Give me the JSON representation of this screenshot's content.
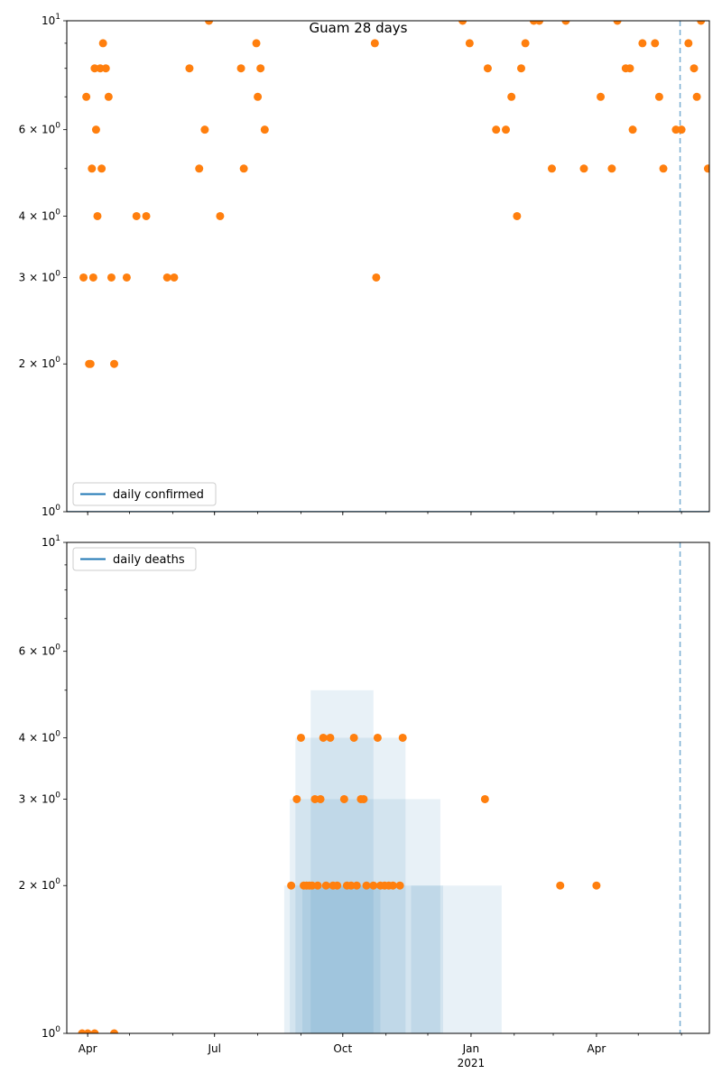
{
  "figure_title": "Guam 28 days",
  "colors": {
    "line": "#1f77b4",
    "points": "#ff7f0e",
    "band": "#1f77b4",
    "vline": "#1f77b4"
  },
  "chart_data": [
    {
      "type": "scatter",
      "title": "Guam 28 days",
      "xlabel": "",
      "ylabel": "",
      "y_scale": "log",
      "ylim": [
        1,
        10
      ],
      "xlim": [
        "2020-03-17",
        "2021-06-21"
      ],
      "x_ticks": [
        {
          "date": "2020-04-01",
          "label": "Apr"
        },
        {
          "date": "2020-07-01",
          "label": "Jul"
        },
        {
          "date": "2020-10-01",
          "label": "Oct"
        },
        {
          "date": "2021-01-01",
          "label": "Jan",
          "sublabel": "2021"
        },
        {
          "date": "2021-04-01",
          "label": "Apr"
        }
      ],
      "y_ticks": [
        {
          "value": 1,
          "label": "10^0",
          "mant": "10",
          "exp": "0"
        },
        {
          "value": 2,
          "label": "2×10^0",
          "mant": "2 × 10",
          "exp": "0"
        },
        {
          "value": 3,
          "label": "3×10^0",
          "mant": "3 × 10",
          "exp": "0"
        },
        {
          "value": 4,
          "label": "4×10^0",
          "mant": "4 × 10",
          "exp": "0"
        },
        {
          "value": 6,
          "label": "6×10^0",
          "mant": "6 × 10",
          "exp": "0"
        },
        {
          "value": 10,
          "label": "10^1",
          "mant": "10",
          "exp": "1"
        }
      ],
      "legend": {
        "position": "lower-left",
        "entries": [
          "daily confirmed"
        ]
      },
      "vline_date": "2021-05-31",
      "series": [
        {
          "name": "daily confirmed",
          "kind": "line",
          "x": [
            "2020-03-17",
            "2021-06-21"
          ],
          "y": [
            1,
            1
          ]
        }
      ],
      "points": [
        [
          "2020-03-29",
          3
        ],
        [
          "2020-03-31",
          7
        ],
        [
          "2020-04-02",
          2
        ],
        [
          "2020-04-04",
          5
        ],
        [
          "2020-04-06",
          8
        ],
        [
          "2020-04-07",
          6
        ],
        [
          "2020-04-08",
          4
        ],
        [
          "2020-04-10",
          8
        ],
        [
          "2020-04-12",
          9
        ],
        [
          "2020-04-14",
          8
        ],
        [
          "2020-04-16",
          7
        ],
        [
          "2020-04-18",
          3
        ],
        [
          "2020-04-11",
          5
        ],
        [
          "2020-04-03",
          2
        ],
        [
          "2020-04-05",
          3
        ],
        [
          "2020-04-20",
          2
        ],
        [
          "2020-04-29",
          3
        ],
        [
          "2020-05-06",
          4
        ],
        [
          "2020-05-13",
          4
        ],
        [
          "2020-05-28",
          3
        ],
        [
          "2020-06-02",
          3
        ],
        [
          "2020-06-13",
          8
        ],
        [
          "2020-06-20",
          5
        ],
        [
          "2020-06-24",
          6
        ],
        [
          "2020-06-27",
          10
        ],
        [
          "2020-07-05",
          4
        ],
        [
          "2020-07-20",
          8
        ],
        [
          "2020-07-22",
          5
        ],
        [
          "2020-07-31",
          9
        ],
        [
          "2020-08-01",
          7
        ],
        [
          "2020-08-03",
          8
        ],
        [
          "2020-08-06",
          6
        ],
        [
          "2020-10-24",
          9
        ],
        [
          "2020-10-25",
          3
        ],
        [
          "2020-12-26",
          10
        ],
        [
          "2020-12-31",
          9
        ],
        [
          "2021-01-13",
          8
        ],
        [
          "2021-01-19",
          6
        ],
        [
          "2021-01-26",
          6
        ],
        [
          "2021-01-30",
          7
        ],
        [
          "2021-02-03",
          4
        ],
        [
          "2021-02-06",
          8
        ],
        [
          "2021-02-09",
          9
        ],
        [
          "2021-02-15",
          10
        ],
        [
          "2021-02-19",
          10
        ],
        [
          "2021-02-28",
          5
        ],
        [
          "2021-03-10",
          10
        ],
        [
          "2021-03-23",
          5
        ],
        [
          "2021-04-04",
          7
        ],
        [
          "2021-04-12",
          5
        ],
        [
          "2021-04-16",
          10
        ],
        [
          "2021-04-22",
          8
        ],
        [
          "2021-04-25",
          8
        ],
        [
          "2021-04-27",
          6
        ],
        [
          "2021-05-04",
          9
        ],
        [
          "2021-05-13",
          9
        ],
        [
          "2021-05-16",
          7
        ],
        [
          "2021-05-19",
          5
        ],
        [
          "2021-05-28",
          6
        ],
        [
          "2021-06-01",
          6
        ],
        [
          "2021-06-06",
          9
        ],
        [
          "2021-06-10",
          8
        ],
        [
          "2021-06-12",
          7
        ],
        [
          "2021-06-15",
          10
        ],
        [
          "2021-06-20",
          5
        ]
      ]
    },
    {
      "type": "scatter",
      "title": "",
      "xlabel": "",
      "ylabel": "",
      "y_scale": "log",
      "ylim": [
        1,
        10
      ],
      "xlim": [
        "2020-03-17",
        "2021-06-21"
      ],
      "x_ticks": [
        {
          "date": "2020-04-01",
          "label": "Apr"
        },
        {
          "date": "2020-07-01",
          "label": "Jul"
        },
        {
          "date": "2020-10-01",
          "label": "Oct"
        },
        {
          "date": "2021-01-01",
          "label": "Jan",
          "sublabel": "2021"
        },
        {
          "date": "2021-04-01",
          "label": "Apr"
        }
      ],
      "y_ticks": [
        {
          "value": 1,
          "label": "10^0",
          "mant": "10",
          "exp": "0"
        },
        {
          "value": 2,
          "label": "2×10^0",
          "mant": "2 × 10",
          "exp": "0"
        },
        {
          "value": 3,
          "label": "3×10^0",
          "mant": "3 × 10",
          "exp": "0"
        },
        {
          "value": 4,
          "label": "4×10^0",
          "mant": "4 × 10",
          "exp": "0"
        },
        {
          "value": 6,
          "label": "6×10^0",
          "mant": "6 × 10",
          "exp": "0"
        },
        {
          "value": 10,
          "label": "10^1",
          "mant": "10",
          "exp": "1"
        }
      ],
      "legend": {
        "position": "upper-left",
        "entries": [
          "daily deaths"
        ]
      },
      "vline_date": "2021-05-31",
      "bands": [
        {
          "x0": "2020-08-20",
          "x1": "2021-01-23",
          "y": 2
        },
        {
          "x0": "2020-08-24",
          "x1": "2020-12-10",
          "y": 3
        },
        {
          "x0": "2020-08-28",
          "x1": "2020-11-15",
          "y": 4
        },
        {
          "x0": "2020-09-08",
          "x1": "2020-10-23",
          "y": 5
        },
        {
          "x0": "2020-09-02",
          "x1": "2020-10-28",
          "y": 2
        },
        {
          "x0": "2020-11-19",
          "x1": "2020-12-12",
          "y": 2
        }
      ],
      "points": [
        [
          "2020-03-28",
          1
        ],
        [
          "2020-04-01",
          1
        ],
        [
          "2020-04-06",
          1
        ],
        [
          "2020-04-20",
          1
        ],
        [
          "2020-08-25",
          2
        ],
        [
          "2020-08-29",
          3
        ],
        [
          "2020-09-01",
          4
        ],
        [
          "2020-09-03",
          2
        ],
        [
          "2020-09-05",
          2
        ],
        [
          "2020-09-07",
          2
        ],
        [
          "2020-09-09",
          2
        ],
        [
          "2020-09-11",
          3
        ],
        [
          "2020-09-13",
          2
        ],
        [
          "2020-09-15",
          3
        ],
        [
          "2020-09-17",
          4
        ],
        [
          "2020-09-19",
          2
        ],
        [
          "2020-09-22",
          4
        ],
        [
          "2020-09-24",
          2
        ],
        [
          "2020-09-27",
          2
        ],
        [
          "2020-10-02",
          3
        ],
        [
          "2020-10-04",
          2
        ],
        [
          "2020-10-07",
          2
        ],
        [
          "2020-10-09",
          4
        ],
        [
          "2020-10-11",
          2
        ],
        [
          "2020-10-14",
          3
        ],
        [
          "2020-10-16",
          3
        ],
        [
          "2020-10-18",
          2
        ],
        [
          "2020-10-23",
          2
        ],
        [
          "2020-10-26",
          4
        ],
        [
          "2020-10-28",
          2
        ],
        [
          "2020-10-31",
          2
        ],
        [
          "2020-11-03",
          2
        ],
        [
          "2020-11-06",
          2
        ],
        [
          "2020-11-11",
          2
        ],
        [
          "2020-11-13",
          4
        ],
        [
          "2021-01-11",
          3
        ],
        [
          "2021-03-06",
          2
        ],
        [
          "2021-04-01",
          2
        ]
      ]
    }
  ]
}
